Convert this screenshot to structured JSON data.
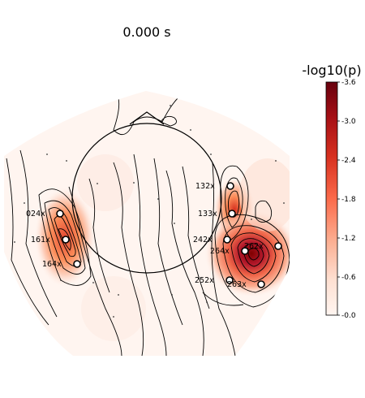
{
  "title": "0.000 s",
  "colorbar": {
    "label": "-log10(p)",
    "ticks": [
      "-3.6",
      "-3.0",
      "-2.4",
      "-1.8",
      "-1.2",
      "-0.6",
      "-0.0"
    ],
    "colors": [
      "#7f0000",
      "#b2182b",
      "#e34a33",
      "#fc8d59",
      "#fdbb84",
      "#fee8c8",
      "#fff7f3"
    ]
  },
  "sensors": [
    {
      "label": "024x"
    },
    {
      "label": "161x"
    },
    {
      "label": "164x"
    },
    {
      "label": "132x"
    },
    {
      "label": "133x"
    },
    {
      "label": "242x"
    },
    {
      "label": "264x"
    },
    {
      "label": "252x"
    },
    {
      "label": "263x"
    },
    {
      "label": "262x"
    }
  ]
}
